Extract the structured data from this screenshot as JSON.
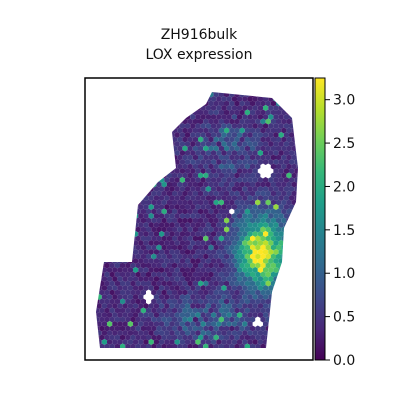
{
  "chart_data": {
    "type": "heatmap",
    "title_lines": [
      "ZH916bulk",
      "LOX expression"
    ],
    "xlabel": "",
    "ylabel": "",
    "colorbar": {
      "range": [
        0.0,
        3.25
      ],
      "ticks": [
        0.0,
        0.5,
        1.0,
        1.5,
        2.0,
        2.5,
        3.0
      ],
      "tick_labels": [
        "0.0",
        "0.5",
        "1.0",
        "1.5",
        "2.0",
        "2.5",
        "3.0"
      ],
      "colormap": "viridis"
    },
    "hotspot": {
      "region": "right-middle",
      "max_value": 3.2
    },
    "secondary_regions": [
      {
        "region": "bottom-center",
        "value": 1.3
      },
      {
        "region": "upper-middle",
        "value": 0.9
      }
    ],
    "background_value": 0.15,
    "spot_shape": "hexagon",
    "axes_ticks": false
  },
  "colors": {
    "viridis_stops": [
      "#440154",
      "#482878",
      "#3e4989",
      "#31688e",
      "#26828e",
      "#1f9e89",
      "#35b779",
      "#6ece58",
      "#b5de2b",
      "#fde725"
    ],
    "frame": "#000000"
  }
}
